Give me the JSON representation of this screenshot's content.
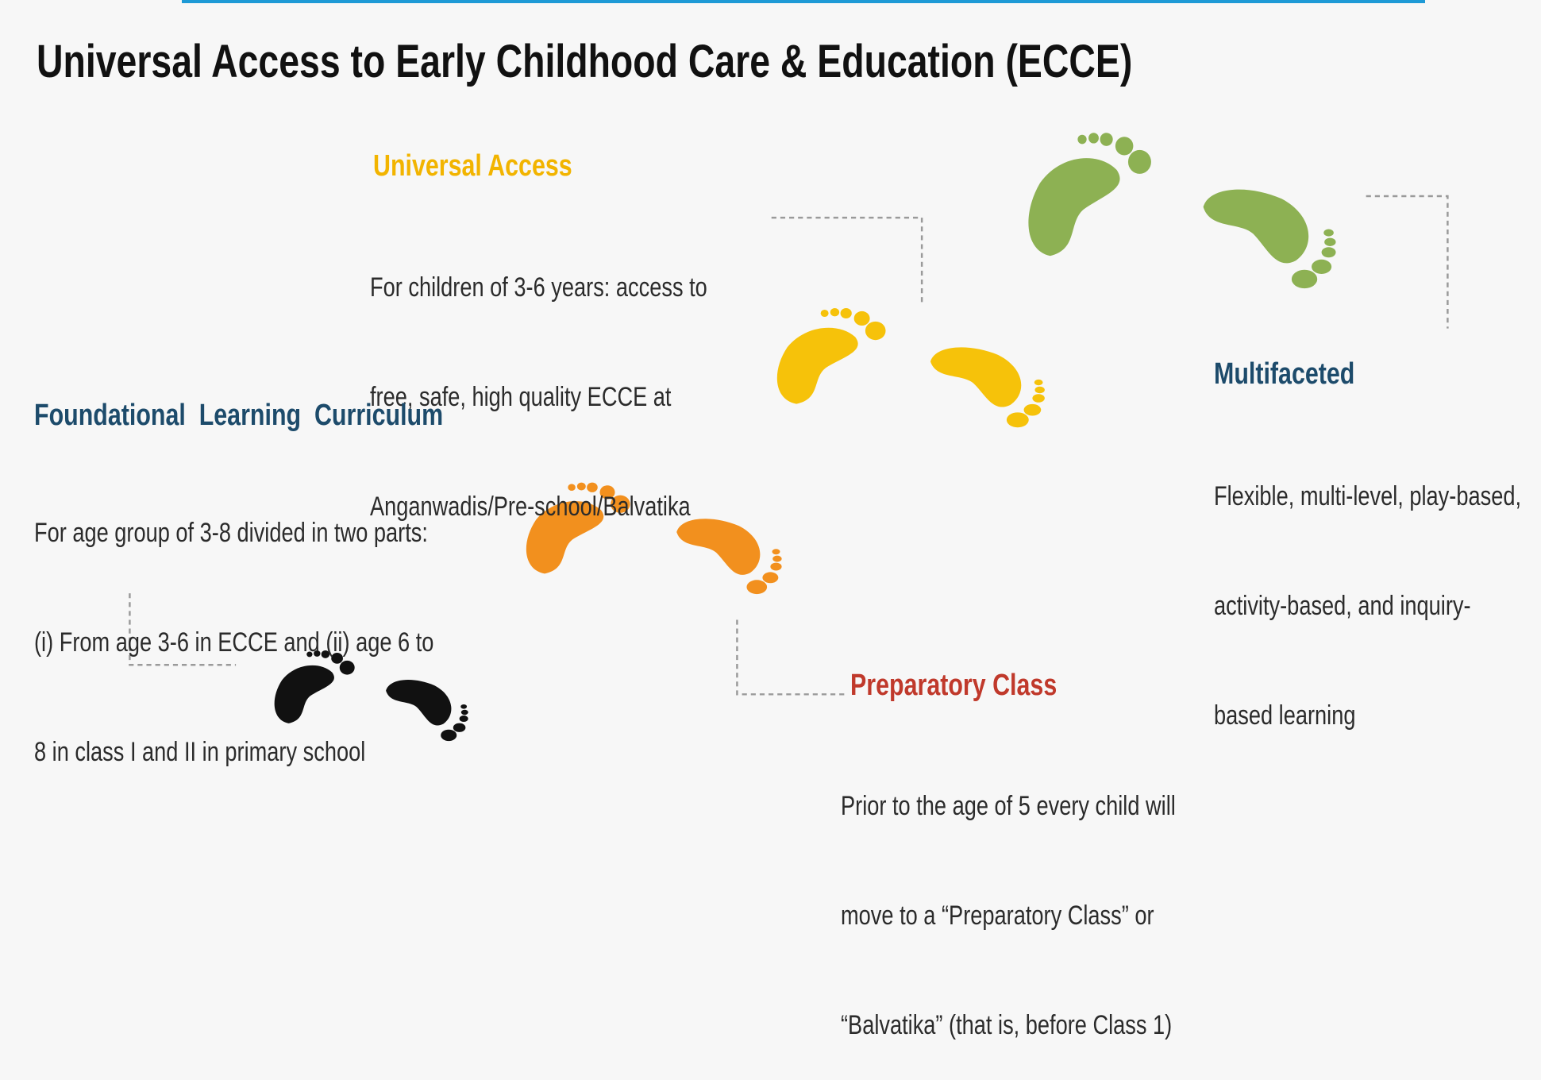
{
  "title": "Universal Access to Early Childhood Care & Education (ECCE)",
  "sections": [
    {
      "heading": "Universal Access",
      "lines": [
        "For children of 3-6 years: access to",
        "free, safe, high quality ECCE at",
        "Anganwadis/Pre-school/Balvatika"
      ]
    },
    {
      "heading": "Foundational  Learning  Curriculum",
      "lines": [
        "For age group of 3-8 divided in two parts:",
        "(i) From age 3-6 in ECCE and (ii) age 6 to",
        "8 in class I and II in primary school"
      ]
    },
    {
      "heading": "Multifaceted",
      "lines": [
        "Flexible, multi-level, play-based,",
        "activity-based, and inquiry-",
        "based learning"
      ]
    },
    {
      "heading": "Preparatory Class",
      "lines": [
        "Prior to the age of 5 every child will",
        "move to a “Preparatory Class” or",
        "“Balvatika” (that is, before Class 1)"
      ]
    }
  ]
}
